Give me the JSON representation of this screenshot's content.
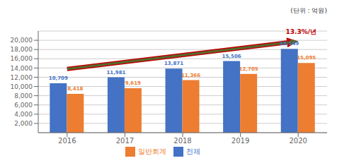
{
  "chart_data": {
    "type": "bar",
    "categories": [
      "2016",
      "2017",
      "2018",
      "2019",
      "2020"
    ],
    "series": [
      {
        "name": "전체",
        "color": "#4472C4",
        "values": [
          10709,
          11981,
          13871,
          15506,
          18149
        ],
        "value_labels": [
          "10,709",
          "11,981",
          "13,871",
          "15,506",
          "18,149"
        ]
      },
      {
        "name": "일반회계",
        "color": "#ED7D31",
        "values": [
          8418,
          9619,
          11366,
          12705,
          15095
        ],
        "value_labels": [
          "8,418",
          "9,619",
          "11,366",
          "12,705",
          "15,095"
        ]
      }
    ],
    "ylim": [
      0,
      22000
    ],
    "yticks": [
      {
        "value": 2000,
        "label": "2,000"
      },
      {
        "value": 4000,
        "label": "4,000"
      },
      {
        "value": 6000,
        "label": "6,000"
      },
      {
        "value": 8000,
        "label": "8,000"
      },
      {
        "value": 10000,
        "label": "10,000"
      },
      {
        "value": 12000,
        "label": "12,000"
      },
      {
        "value": 14000,
        "label": "14,000"
      },
      {
        "value": 16000,
        "label": "16,000"
      },
      {
        "value": 18000,
        "label": "18,000"
      },
      {
        "value": 20000,
        "label": "20,000"
      }
    ],
    "grid": true,
    "legend": "bottom",
    "data_labels": true,
    "annotations": [
      {
        "text": "(단위 : 억원)"
      },
      {
        "text": "13.3%/년",
        "color": "#C00000",
        "arrow": {
          "y_start": 13800,
          "y_end": 19800,
          "color": "#556B2F"
        }
      }
    ]
  }
}
